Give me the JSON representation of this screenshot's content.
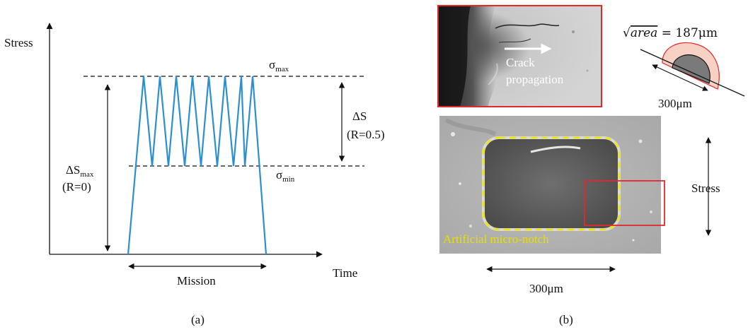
{
  "panel_a": {
    "y_axis_label": "Stress",
    "x_axis_label": "Time",
    "sigma_max_label": "σ",
    "sigma_max_sub": "max",
    "sigma_min_label": "σ",
    "sigma_min_sub": "min",
    "delta_s_label": "ΔS",
    "delta_s_ratio": "(R=0.5)",
    "delta_smax_label": "ΔS",
    "delta_smax_sub": "max",
    "delta_smax_ratio": "(R=0)",
    "mission_label": "Mission",
    "caption": "(a)",
    "waveform_color": "#2c8fd0",
    "cycles_shown": 7
  },
  "panel_b": {
    "crack_propagation_line1": "Crack",
    "crack_propagation_line2": "propagation",
    "area_formula_root": "area",
    "area_formula_value": " = 187μm",
    "small_dimension": "300μm",
    "notch_label": "Artificial micro-notch",
    "width_dimension": "300μm",
    "stress_label": "Stress",
    "caption": "(b)",
    "highlight_color": "#e0292b",
    "notch_outline_color": "#f2e600",
    "halo_color": "#f7d2c4"
  }
}
